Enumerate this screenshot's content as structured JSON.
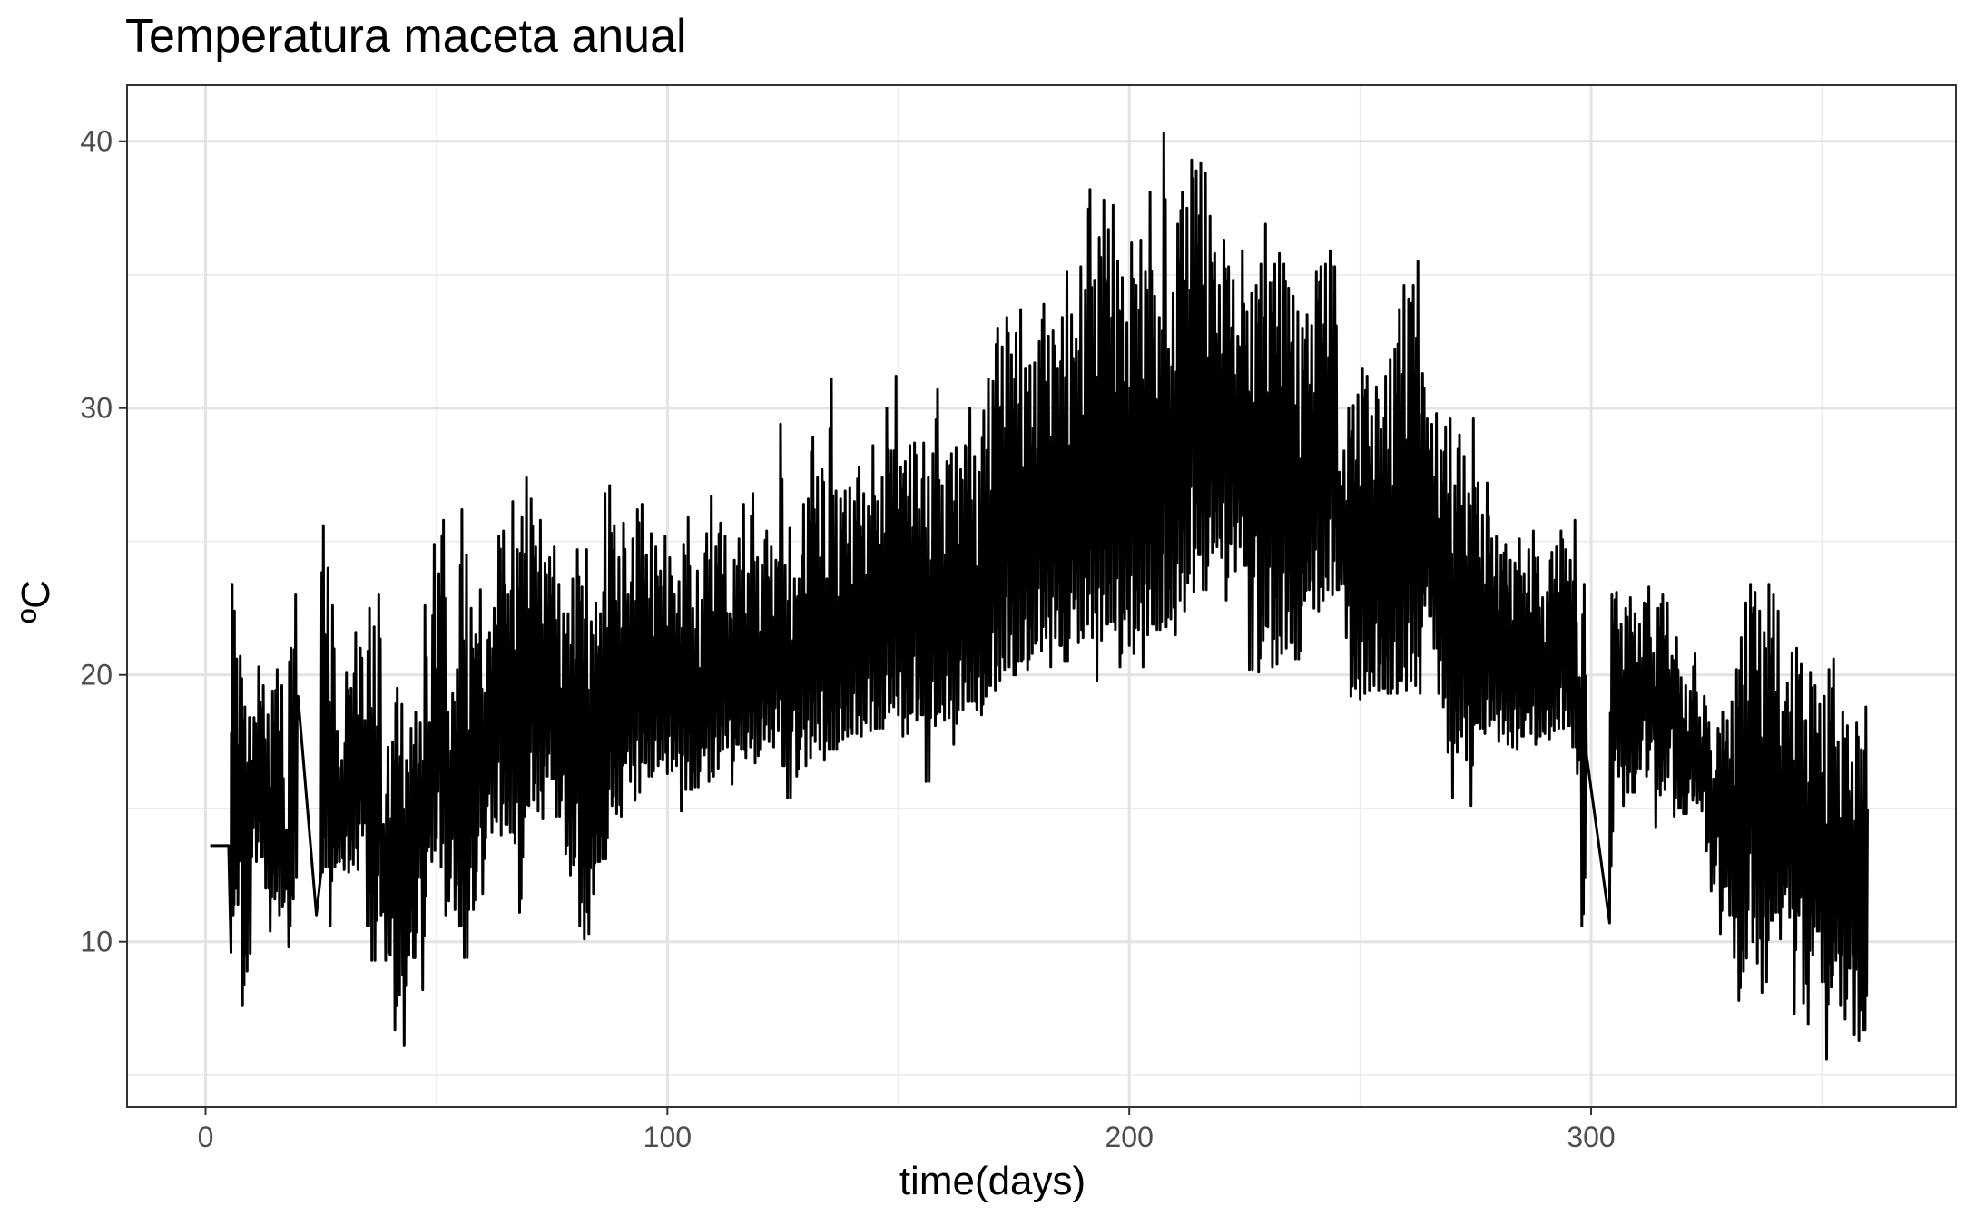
{
  "chart_data": {
    "type": "line",
    "title": "Temperatura maceta anual",
    "xlabel": "time(days)",
    "ylabel": "ºC",
    "xlim": [
      -17,
      379
    ],
    "ylim": [
      3.8,
      42.1
    ],
    "x_ticks": [
      0,
      100,
      200,
      300
    ],
    "x_tick_labels": [
      "0",
      "100",
      "200",
      "300"
    ],
    "y_ticks": [
      10,
      20,
      30,
      40
    ],
    "y_tick_labels": [
      "10",
      "20",
      "30",
      "40"
    ],
    "grid": true,
    "legend": "none",
    "line_color": "#000000",
    "series": [
      {
        "x": [
          1,
          4,
          5,
          5.5,
          6,
          6.5,
          7,
          8,
          9,
          10,
          11,
          12,
          13,
          14,
          15,
          16,
          17,
          18,
          19,
          20,
          24,
          25,
          26,
          27,
          28,
          29,
          30,
          31,
          32,
          33,
          34,
          35,
          36,
          37,
          38,
          39,
          40,
          41,
          42,
          43,
          44,
          45,
          46,
          47,
          48,
          49,
          50,
          51,
          52,
          53,
          54,
          55,
          56,
          57,
          58,
          59,
          60,
          61,
          62,
          63,
          64,
          65,
          66,
          67,
          68,
          69,
          70,
          71,
          72,
          73,
          74,
          75,
          76,
          77,
          78,
          79,
          80,
          81,
          82,
          83,
          84,
          85,
          86,
          87,
          88,
          89,
          90,
          91,
          92,
          93,
          94,
          95,
          96,
          97,
          98,
          99,
          100,
          101,
          102,
          103,
          104,
          105,
          106,
          107,
          108,
          109,
          110,
          111,
          112,
          113,
          114,
          115,
          116,
          117,
          118,
          119,
          120,
          121,
          122,
          123,
          124,
          125,
          126,
          127,
          128,
          129,
          130,
          131,
          132,
          133,
          134,
          135,
          136,
          137,
          138,
          139,
          140,
          141,
          142,
          143,
          144,
          145,
          146,
          147,
          148,
          149,
          150,
          151,
          152,
          153,
          154,
          155,
          156,
          157,
          158,
          159,
          160,
          161,
          162,
          163,
          164,
          165,
          166,
          167,
          168,
          169,
          170,
          171,
          172,
          173,
          174,
          175,
          176,
          177,
          178,
          179,
          180,
          181,
          182,
          183,
          184,
          185,
          186,
          187,
          188,
          189,
          190,
          191,
          192,
          193,
          194,
          195,
          196,
          197,
          198,
          199,
          200,
          201,
          202,
          203,
          204,
          205,
          206,
          207,
          208,
          209,
          210,
          211,
          212,
          213,
          214,
          215,
          216,
          217,
          218,
          219,
          220,
          221,
          222,
          223,
          224,
          225,
          226,
          227,
          228,
          229,
          230,
          231,
          232,
          233,
          234,
          235,
          236,
          237,
          238,
          239,
          240,
          241,
          242,
          243,
          244,
          245,
          246,
          247,
          248,
          249,
          250,
          251,
          252,
          253,
          254,
          255,
          256,
          257,
          258,
          259,
          260,
          261,
          262,
          263,
          264,
          265,
          266,
          267,
          268,
          269,
          270,
          271,
          272,
          273,
          274,
          275,
          276,
          277,
          278,
          279,
          280,
          281,
          282,
          283,
          284,
          285,
          286,
          287,
          288,
          289,
          290,
          291,
          292,
          293,
          294,
          295,
          296,
          297,
          298,
          299,
          304,
          305,
          306,
          307,
          308,
          309,
          310,
          311,
          312,
          313,
          314,
          315,
          316,
          317,
          318,
          319,
          320,
          321,
          322,
          323,
          324,
          325,
          326,
          327,
          328,
          329,
          330,
          331,
          332,
          333,
          334,
          335,
          336,
          337,
          338,
          339,
          340,
          341,
          342,
          343,
          344,
          345,
          346,
          347,
          348,
          349,
          350,
          351,
          352,
          353,
          354,
          355,
          356,
          357,
          358,
          359,
          360,
          361,
          362,
          363,
          364,
          365
        ],
        "min": [
          13.6,
          13.6,
          13.6,
          9.6,
          11.0,
          12.0,
          11.4,
          7.6,
          8.9,
          13.2,
          13.0,
          13.2,
          12.0,
          10.4,
          11.6,
          11.0,
          11.5,
          9.8,
          11.6,
          15.5,
          11.0,
          12.6,
          12.8,
          10.6,
          12.8,
          13.0,
          12.7,
          12.6,
          12.9,
          12.7,
          14.0,
          10.6,
          9.3,
          10.8,
          11.0,
          9.3,
          9.5,
          6.7,
          8.0,
          6.1,
          9.5,
          9.4,
          12.4,
          8.2,
          13.4,
          13.0,
          13.9,
          12.8,
          11.0,
          12.4,
          11.2,
          10.6,
          9.4,
          11.2,
          11.2,
          14.0,
          11.8,
          15.1,
          14.1,
          14.5,
          14.0,
          14.4,
          14.1,
          13.7,
          11.1,
          14.7,
          15.1,
          15.3,
          14.9,
          14.6,
          16.2,
          16.1,
          14.7,
          15.3,
          13.3,
          12.5,
          13.2,
          10.6,
          10.1,
          10.3,
          11.8,
          13.0,
          13.1,
          13.9,
          15.1,
          14.8,
          14.7,
          16.7,
          16.0,
          15.3,
          15.6,
          16.7,
          16.2,
          16.4,
          16.6,
          16.8,
          16.3,
          16.4,
          16.6,
          14.9,
          15.7,
          15.7,
          15.8,
          16.4,
          17.0,
          16.0,
          16.2,
          16.5,
          17.2,
          17.3,
          15.9,
          17.4,
          17.2,
          16.9,
          17.3,
          16.7,
          17.2,
          17.6,
          17.5,
          17.3,
          17.9,
          16.6,
          15.4,
          17.9,
          16.2,
          17.7,
          16.6,
          16.9,
          17.5,
          17.2,
          16.8,
          17.2,
          17.2,
          17.5,
          17.6,
          17.7,
          17.8,
          17.8,
          17.7,
          18.2,
          17.9,
          18.0,
          18.0,
          18.4,
          18.6,
          18.8,
          18.5,
          17.7,
          17.8,
          18.6,
          18.3,
          18.5,
          16.0,
          18.4,
          18.1,
          18.6,
          18.3,
          18.4,
          17.4,
          18.7,
          18.7,
          19.0,
          19.0,
          18.7,
          18.5,
          19.2,
          19.6,
          19.4,
          19.8,
          20.2,
          20.3,
          20.0,
          20.5,
          20.6,
          20.2,
          20.8,
          21.3,
          20.9,
          21.4,
          20.3,
          21.4,
          21.1,
          20.5,
          21.4,
          22.5,
          21.2,
          21.4,
          21.9,
          21.4,
          19.8,
          21.3,
          21.9,
          22.0,
          21.7,
          20.3,
          22.1,
          21.1,
          20.8,
          21.7,
          20.3,
          21.5,
          21.9,
          21.7,
          22.0,
          21.8,
          22.1,
          21.5,
          22.8,
          22.4,
          23.8,
          23.1,
          24.5,
          23.2,
          24.1,
          24.6,
          24.8,
          24.4,
          22.8,
          24.9,
          23.9,
          24.8,
          24.1,
          20.2,
          23.7,
          20.1,
          21.3,
          21.8,
          20.3,
          20.4,
          20.8,
          21.0,
          21.2,
          20.6,
          20.9,
          22.8,
          23.2,
          22.5,
          22.4,
          22.8,
          23.2,
          23.0,
          23.2,
          23.4,
          21.4,
          19.2,
          19.5,
          19.1,
          19.3,
          19.4,
          19.6,
          19.4,
          19.5,
          19.3,
          19.5,
          19.3,
          19.8,
          19.4,
          19.8,
          19.6,
          19.3,
          22.6,
          22.2,
          21.0,
          19.3,
          18.8,
          17.1,
          15.4,
          17.1,
          17.7,
          16.8,
          15.1,
          18.2,
          18.0,
          17.8,
          18.1,
          18.3,
          17.5,
          17.8,
          17.4,
          17.3,
          17.2,
          17.7,
          18.6,
          17.8,
          17.4,
          17.7,
          17.8,
          17.6,
          17.9,
          18.0,
          18.0,
          18.1,
          17.3,
          16.3,
          10.6,
          10.8,
          10.7,
          16.8,
          16.2,
          15.1,
          15.6,
          15.6,
          16.5,
          17.6,
          16.2,
          17.5,
          14.3,
          15.5,
          15.7,
          17.3,
          14.7,
          15.0,
          14.8,
          15.6,
          15.3,
          15.2,
          14.9,
          13.4,
          11.9,
          12.9,
          10.3,
          12.1,
          11.0,
          9.4,
          7.8,
          8.9,
          11.2,
          10.0,
          9.2,
          8.1,
          8.5,
          10.8,
          11.1,
          10.1,
          11.8,
          10.9,
          7.3,
          11.0,
          7.7,
          6.9,
          9.5,
          10.4,
          8.5,
          5.6,
          8.3,
          9.3,
          7.6,
          7.1,
          9.0,
          6.5,
          6.3,
          6.7,
          6.9,
          7.6,
          6.8,
          6.6,
          4.6
        ],
        "max": [
          13.6,
          13.6,
          13.6,
          23.4,
          22.4,
          20.6,
          20.7,
          18.8,
          18.4,
          18.4,
          20.3,
          19.6,
          18.5,
          19.4,
          20.2,
          19.6,
          14.2,
          21.0,
          23.0,
          22.9,
          11.0,
          25.6,
          24.0,
          22.6,
          17.9,
          16.8,
          20.1,
          19.5,
          21.6,
          21.0,
          18.3,
          22.5,
          21.8,
          23.0,
          14.4,
          17.3,
          17.5,
          19.5,
          18.9,
          16.8,
          18.0,
          18.6,
          18.2,
          22.6,
          18.2,
          24.9,
          23.8,
          25.8,
          18.6,
          19.3,
          20.2,
          26.2,
          24.5,
          22.5,
          21.5,
          23.2,
          19.3,
          21.6,
          22.5,
          25.2,
          25.4,
          23.0,
          26.5,
          24.7,
          25.9,
          27.4,
          26.6,
          24.8,
          25.8,
          24.2,
          24.4,
          24.8,
          23.4,
          22.3,
          22.3,
          23.6,
          24.7,
          23.3,
          24.7,
          22.0,
          22.7,
          22.3,
          26.8,
          27.1,
          25.6,
          24.4,
          25.7,
          23.0,
          25.1,
          26.2,
          26.4,
          24.5,
          25.3,
          24.8,
          23.9,
          25.2,
          24.4,
          23.0,
          23.5,
          24.9,
          25.9,
          22.5,
          23.9,
          22.8,
          25.3,
          26.7,
          24.8,
          25.7,
          25.2,
          22.3,
          24.3,
          25.1,
          26.4,
          23.8,
          26.8,
          24.4,
          24.1,
          25.4,
          24.8,
          24.3,
          29.4,
          24.1,
          25.5,
          23.6,
          23.6,
          26.4,
          26.6,
          28.9,
          27.4,
          27.7,
          23.6,
          31.1,
          26.9,
          26.6,
          26.9,
          27.0,
          26.5,
          27.8,
          26.8,
          26.3,
          28.6,
          26.5,
          27.4,
          30.0,
          28.4,
          31.2,
          27.8,
          28.0,
          28.6,
          28.7,
          26.2,
          28.7,
          27.4,
          28.3,
          30.7,
          27.1,
          28.0,
          28.3,
          28.5,
          27.7,
          28.6,
          30.0,
          28.2,
          27.6,
          29.9,
          31.1,
          31.0,
          33.0,
          32.3,
          33.4,
          32.0,
          32.8,
          33.7,
          31.5,
          31.6,
          31.7,
          32.5,
          33.9,
          32.7,
          32.9,
          31.5,
          33.4,
          35.1,
          33.5,
          32.6,
          35.3,
          34.4,
          38.2,
          34.8,
          36.4,
          37.8,
          36.7,
          37.6,
          35.5,
          34.9,
          33.2,
          36.2,
          34.6,
          36.3,
          35.1,
          38.1,
          34.2,
          33.4,
          40.3,
          32.2,
          34.3,
          36.9,
          38.1,
          37.5,
          39.3,
          38.9,
          39.2,
          38.8,
          37.2,
          35.8,
          34.6,
          36.3,
          35.3,
          34.8,
          32.7,
          35.9,
          33.6,
          34.3,
          34.6,
          35.4,
          36.9,
          34.7,
          35.4,
          35.8,
          35.4,
          34.5,
          34.2,
          33.6,
          33.0,
          33.5,
          33.1,
          35.1,
          35.3,
          35.4,
          35.9,
          35.3,
          27.6,
          28.4,
          30.0,
          30.1,
          30.5,
          31.5,
          31.2,
          29.7,
          30.8,
          29.2,
          31.2,
          31.8,
          32.2,
          33.7,
          34.6,
          34.1,
          34.6,
          35.5,
          31.3,
          29.6,
          29.4,
          29.8,
          28.4,
          29.3,
          29.6,
          27.1,
          29.0,
          28.2,
          26.8,
          29.6,
          27.2,
          26.0,
          27.2,
          25.1,
          25.2,
          24.5,
          24.9,
          24.3,
          24.2,
          25.1,
          23.8,
          24.7,
          25.4,
          24.4,
          22.9,
          23.1,
          24.6,
          24.8,
          25.4,
          24.7,
          24.3,
          25.8,
          19.9,
          23.4,
          23.2,
          23.0,
          23.1,
          21.9,
          22.5,
          22.9,
          22.3,
          21.9,
          22.7,
          23.3,
          20.8,
          22.5,
          23.0,
          22.7,
          20.7,
          21.4,
          19.9,
          19.6,
          19.4,
          20.8,
          18.4,
          19.2,
          18.2,
          16.1,
          18.0,
          18.6,
          18.3,
          19.0,
          20.2,
          21.4,
          22.7,
          23.4,
          23.1,
          22.4,
          21.6,
          23.4,
          23.0,
          22.4,
          18.6,
          19.7,
          20.8,
          21.0,
          20.4,
          18.3,
          20.1,
          19.6,
          18.9,
          19.2,
          20.2,
          20.6,
          17.5,
          18.6,
          18.1,
          16.7,
          18.2,
          17.2,
          18.8
        ]
      }
    ]
  }
}
